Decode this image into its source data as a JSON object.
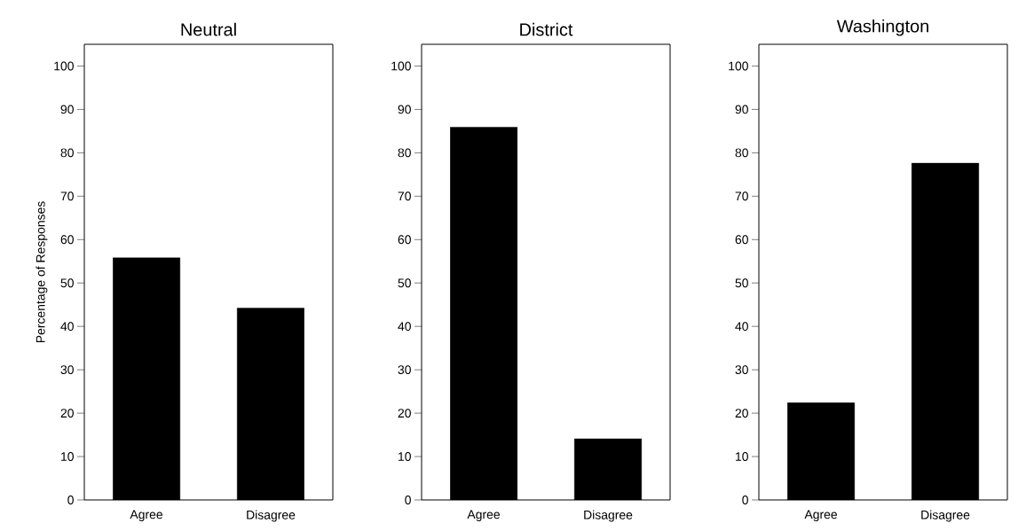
{
  "chart_data": [
    {
      "type": "bar",
      "title": "Neutral",
      "ylabel": "Percentage of Responses",
      "categories": [
        "Agree",
        "Disagree"
      ],
      "values": [
        55.8,
        44.2
      ],
      "color": "#000000",
      "ylim": [
        0,
        105
      ],
      "yticks": [
        0,
        10,
        20,
        30,
        40,
        50,
        60,
        70,
        80,
        90,
        100
      ]
    },
    {
      "type": "bar",
      "title": "District",
      "categories": [
        "Agree",
        "Disagree"
      ],
      "values": [
        85.9,
        14.1
      ],
      "color": "#000000",
      "ylim": [
        0,
        105
      ],
      "yticks": [
        0,
        10,
        20,
        30,
        40,
        50,
        60,
        70,
        80,
        90,
        100
      ]
    },
    {
      "type": "bar",
      "title": "Washington",
      "categories": [
        "Agree",
        "Disagree"
      ],
      "values": [
        22.4,
        77.6
      ],
      "color": "#000000",
      "ylim": [
        0,
        105
      ],
      "yticks": [
        0,
        10,
        20,
        30,
        40,
        50,
        60,
        70,
        80,
        90,
        100
      ]
    }
  ]
}
